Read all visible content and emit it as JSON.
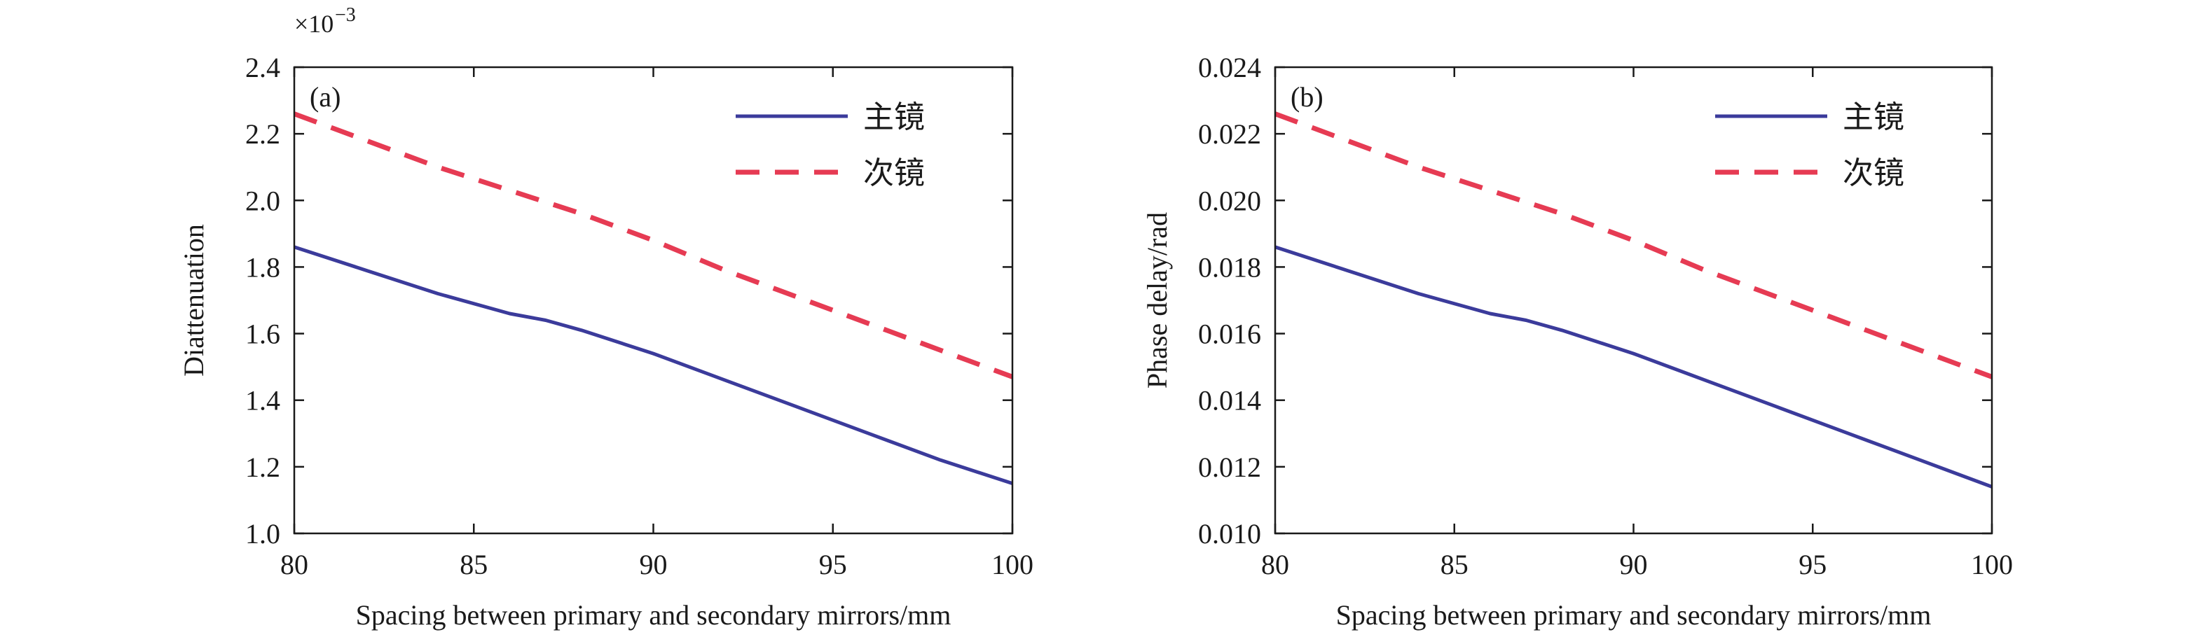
{
  "chart_data": [
    {
      "type": "line",
      "panel_label": "(a)",
      "xlabel": "Spacing between primary and secondary mirrors/mm",
      "ylabel": "Diattenuation",
      "y_multiplier": "×10",
      "y_multiplier_exp": "−3",
      "xlim": [
        80,
        100
      ],
      "ylim": [
        1.0,
        2.4
      ],
      "xticks": [
        "80",
        "85",
        "90",
        "95",
        "100"
      ],
      "yticks": [
        "1.0",
        "1.2",
        "1.4",
        "1.6",
        "1.8",
        "2.0",
        "2.2",
        "2.4"
      ],
      "grid": false,
      "legend_position": "top-right",
      "series": [
        {
          "name": "主镜",
          "style": "solid",
          "color": "#3b3b9b",
          "x": [
            80,
            82,
            84,
            86,
            87,
            88,
            90,
            92,
            94,
            96,
            98,
            100
          ],
          "y": [
            1.86,
            1.79,
            1.72,
            1.66,
            1.64,
            1.61,
            1.54,
            1.46,
            1.38,
            1.3,
            1.22,
            1.15
          ]
        },
        {
          "name": "次镜",
          "style": "dashed",
          "color": "#e63b53",
          "x": [
            80,
            82,
            84,
            86,
            88,
            90,
            92,
            94,
            96,
            98,
            100
          ],
          "y": [
            2.26,
            2.18,
            2.1,
            2.03,
            1.96,
            1.88,
            1.79,
            1.71,
            1.63,
            1.55,
            1.47
          ]
        }
      ]
    },
    {
      "type": "line",
      "panel_label": "(b)",
      "xlabel": "Spacing between primary and secondary mirrors/mm",
      "ylabel": "Phase delay/rad",
      "xlim": [
        80,
        100
      ],
      "ylim": [
        0.01,
        0.024
      ],
      "xticks": [
        "80",
        "85",
        "90",
        "95",
        "100"
      ],
      "yticks": [
        "0.010",
        "0.012",
        "0.014",
        "0.016",
        "0.018",
        "0.020",
        "0.022",
        "0.024"
      ],
      "grid": false,
      "legend_position": "top-right",
      "series": [
        {
          "name": "主镜",
          "style": "solid",
          "color": "#3b3b9b",
          "x": [
            80,
            82,
            84,
            86,
            87,
            88,
            90,
            92,
            94,
            96,
            98,
            100
          ],
          "y": [
            0.0186,
            0.0179,
            0.0172,
            0.0166,
            0.0164,
            0.0161,
            0.0154,
            0.0146,
            0.0138,
            0.013,
            0.0122,
            0.0114
          ]
        },
        {
          "name": "次镜",
          "style": "dashed",
          "color": "#e63b53",
          "x": [
            80,
            82,
            84,
            86,
            88,
            90,
            92,
            94,
            96,
            98,
            100
          ],
          "y": [
            0.0226,
            0.0218,
            0.021,
            0.0203,
            0.0196,
            0.0188,
            0.0179,
            0.0171,
            0.0163,
            0.0155,
            0.0147
          ]
        }
      ]
    }
  ]
}
